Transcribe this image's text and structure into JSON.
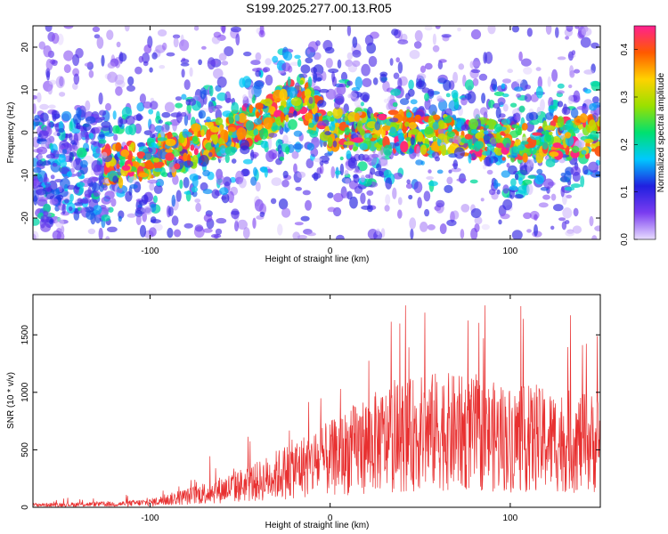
{
  "chart_data": [
    {
      "type": "heatmap",
      "title": "S199.2025.277.00.13.R05",
      "xlabel": "Height of straight line (km)",
      "ylabel": "Frequency (Hz)",
      "xlim": [
        -165,
        150
      ],
      "ylim": [
        -25,
        25
      ],
      "xticks": [
        -100,
        0,
        100
      ],
      "yticks": [
        -20,
        -10,
        0,
        10,
        20
      ],
      "colorbar": {
        "label": "Normalized spectral amplitude",
        "range": [
          0.0,
          0.45
        ],
        "ticks": [
          "0.0",
          "0.1",
          "0.2",
          "0.3",
          "0.4"
        ],
        "colors": [
          "#e8dcff",
          "#7a3cf0",
          "#2020e0",
          "#00c8ff",
          "#00e070",
          "#9ae000",
          "#ffd200",
          "#ff5a00",
          "#ff2090"
        ]
      },
      "ridge": [
        {
          "x": -120,
          "y": -8
        },
        {
          "x": -100,
          "y": -6
        },
        {
          "x": -80,
          "y": -4
        },
        {
          "x": -60,
          "y": -1
        },
        {
          "x": -40,
          "y": 2
        },
        {
          "x": -25,
          "y": 7
        },
        {
          "x": -18,
          "y": 9
        },
        {
          "x": 0,
          "y": 1
        },
        {
          "x": 50,
          "y": 0
        },
        {
          "x": 100,
          "y": -2
        },
        {
          "x": 145,
          "y": -1
        }
      ]
    },
    {
      "type": "line",
      "title": "",
      "xlabel": "Height of straight line (km)",
      "ylabel": "SNR (10 * v/v)",
      "xlim": [
        -165,
        150
      ],
      "ylim": [
        0,
        1850
      ],
      "xticks": [
        -100,
        0,
        100
      ],
      "yticks": [
        0,
        500,
        1000,
        1500
      ],
      "series": [
        {
          "name": "SNR",
          "color": "#e83030",
          "envelope": [
            {
              "x": -165,
              "y": 30
            },
            {
              "x": -120,
              "y": 40
            },
            {
              "x": -100,
              "y": 60
            },
            {
              "x": -80,
              "y": 130
            },
            {
              "x": -60,
              "y": 220
            },
            {
              "x": -40,
              "y": 320
            },
            {
              "x": -20,
              "y": 480
            },
            {
              "x": 0,
              "y": 600
            },
            {
              "x": 20,
              "y": 780
            },
            {
              "x": 40,
              "y": 880
            },
            {
              "x": 60,
              "y": 950
            },
            {
              "x": 80,
              "y": 900
            },
            {
              "x": 100,
              "y": 850
            },
            {
              "x": 120,
              "y": 830
            },
            {
              "x": 150,
              "y": 800
            }
          ]
        }
      ]
    }
  ]
}
